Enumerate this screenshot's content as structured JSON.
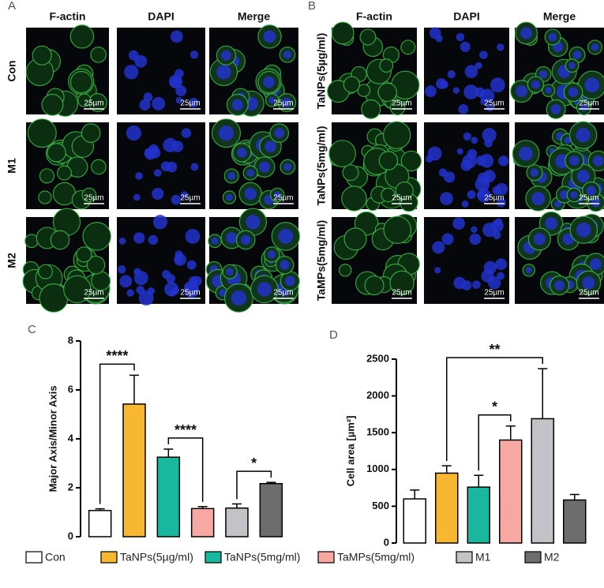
{
  "panels": [
    {
      "label": "A",
      "columns": [
        "F-actin",
        "DAPI",
        "Merge"
      ],
      "rows": [
        "Con",
        "M1",
        "M2"
      ],
      "scale_bar": "25µm"
    },
    {
      "label": "B",
      "columns": [
        "F-actin",
        "DAPI",
        "Merge"
      ],
      "rows": [
        "TaNPs(5µg/ml)",
        "TaNPs(5mg/ml)",
        "TaMPs(5mg/ml)"
      ],
      "scale_bar": "25µm"
    }
  ],
  "chart_data": [
    {
      "type": "bar",
      "panel_label": "C",
      "categories": [
        "Con",
        "TaNPs(5µg/ml)",
        "TaNPs(5mg/ml)",
        "TaMPs(5mg/ml)",
        "M1",
        "M2"
      ],
      "values": [
        1.07,
        5.42,
        3.25,
        1.15,
        1.17,
        2.17
      ],
      "errors": [
        0.07,
        1.18,
        0.33,
        0.08,
        0.17,
        0.05
      ],
      "colors": [
        "#ffffff",
        "#f7b731",
        "#17b89e",
        "#f7a8a3",
        "#c3c3c7",
        "#6d6d6d"
      ],
      "y_label": "Major Axis/Minor Axis",
      "ylim": [
        0,
        8
      ],
      "yticks": [
        0,
        2,
        4,
        6,
        8
      ],
      "annotations": [
        {
          "from": 0,
          "to": 1,
          "text": "****"
        },
        {
          "from": 2,
          "to": 3,
          "text": "****"
        },
        {
          "from": 4,
          "to": 5,
          "text": "*"
        }
      ]
    },
    {
      "type": "bar",
      "panel_label": "D",
      "categories": [
        "Con",
        "TaNPs(5µg/ml)",
        "TaNPs(5mg/ml)",
        "TaMPs(5mg/ml)",
        "M1",
        "M2"
      ],
      "values": [
        600,
        950,
        760,
        1400,
        1690,
        585
      ],
      "errors": [
        120,
        100,
        160,
        190,
        680,
        75
      ],
      "colors": [
        "#ffffff",
        "#f7b731",
        "#17b89e",
        "#f7a8a3",
        "#c3c3c7",
        "#6d6d6d"
      ],
      "y_label": "Cell area [µm²]",
      "ylim": [
        0,
        2500
      ],
      "yticks": [
        0,
        500,
        1000,
        1500,
        2000,
        2500
      ],
      "annotations": [
        {
          "from": 1,
          "to": 4,
          "text": "**"
        },
        {
          "from": 2,
          "to": 3,
          "text": "*"
        }
      ]
    }
  ]
}
